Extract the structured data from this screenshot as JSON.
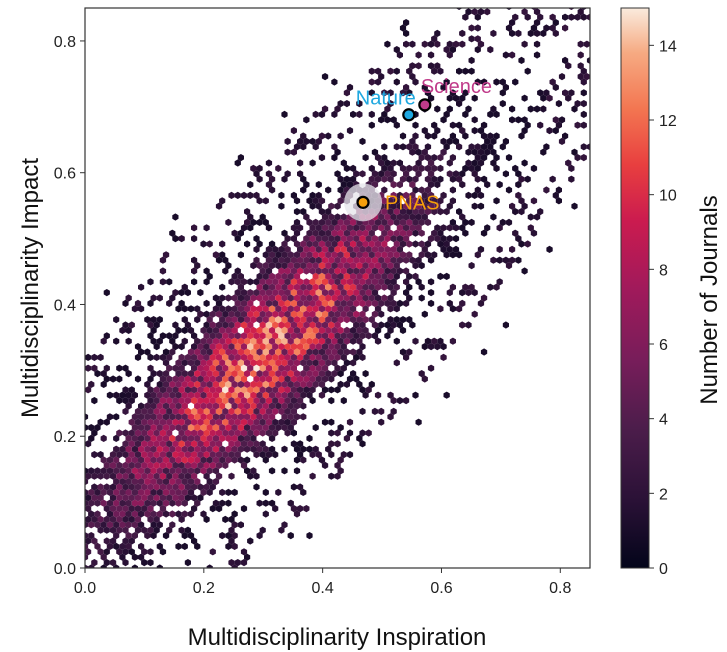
{
  "chart_data": {
    "type": "heatmap",
    "subtype": "hexbin",
    "xlabel": "Multidisciplinarity Inspiration",
    "ylabel": "Multidisciplinarity Impact",
    "xlim": [
      0.0,
      0.85
    ],
    "ylim": [
      0.0,
      0.85
    ],
    "x_ticks": [
      "0.0",
      "0.2",
      "0.4",
      "0.6",
      "0.8"
    ],
    "y_ticks": [
      "0.0",
      "0.2",
      "0.4",
      "0.6",
      "0.8"
    ],
    "grid": false,
    "colorbar": {
      "label": "Number of Journals",
      "range": [
        0,
        15
      ],
      "ticks": [
        "0",
        "2",
        "4",
        "6",
        "8",
        "10",
        "12",
        "14"
      ],
      "colormap": "rocket"
    },
    "annotations": [
      {
        "label": "Nature",
        "x": 0.545,
        "y": 0.688,
        "color": "#1fa8e0"
      },
      {
        "label": "Science",
        "x": 0.572,
        "y": 0.703,
        "color": "#c03b8a"
      },
      {
        "label": "PNAS",
        "x": 0.468,
        "y": 0.555,
        "color": "#f59e0b"
      }
    ],
    "density_trend": {
      "description": "positive linear relationship; highest density near x≈0.3, y≈0.32",
      "slope": 0.95,
      "intercept": 0.04
    }
  }
}
